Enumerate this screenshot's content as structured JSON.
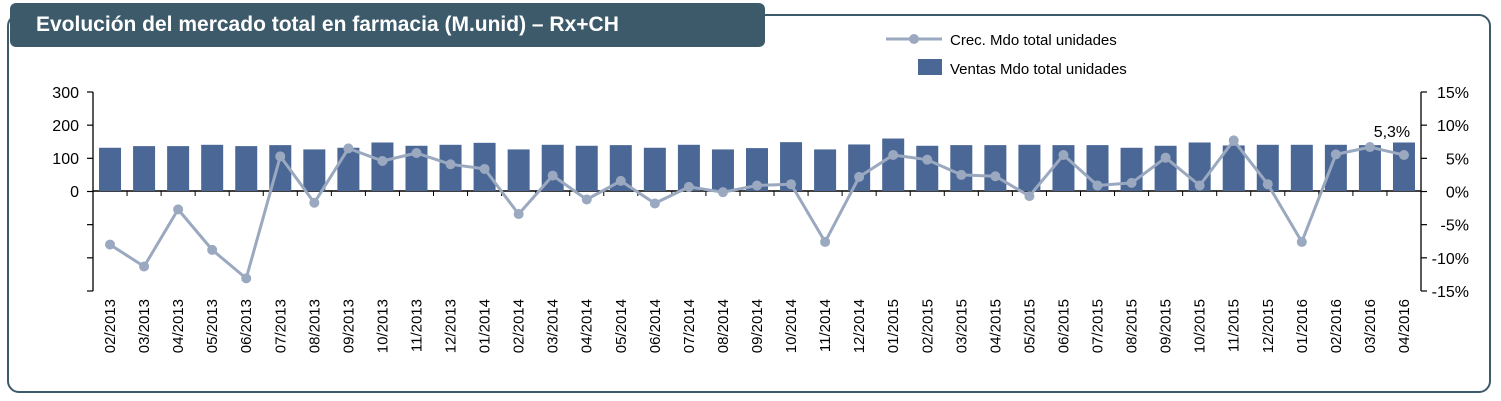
{
  "chart_data": {
    "type": "bar",
    "title": "Evolución del mercado total en farmacia (M.unid) – Rx+CH",
    "categories": [
      "02/2013",
      "03/2013",
      "04/2013",
      "05/2013",
      "06/2013",
      "07/2013",
      "08/2013",
      "09/2013",
      "10/2013",
      "11/2013",
      "12/2013",
      "01/2014",
      "02/2014",
      "03/2014",
      "04/2014",
      "05/2014",
      "06/2014",
      "07/2014",
      "08/2014",
      "09/2014",
      "10/2014",
      "11/2014",
      "12/2014",
      "01/2015",
      "02/2015",
      "03/2015",
      "04/2015",
      "05/2015",
      "06/2015",
      "07/2015",
      "08/2015",
      "09/2015",
      "10/2015",
      "11/2015",
      "12/2015",
      "01/2016",
      "02/2016",
      "03/2016",
      "04/2016"
    ],
    "series": [
      {
        "name": "Ventas Mdo total unidades",
        "type": "bar",
        "axis": "left",
        "color": "#4a6796",
        "values": [
          131,
          136,
          136,
          140,
          136,
          139,
          126,
          131,
          147,
          137,
          140,
          146,
          126,
          140,
          137,
          139,
          131,
          140,
          126,
          130,
          148,
          126,
          141,
          159,
          137,
          139,
          139,
          140,
          139,
          139,
          131,
          137,
          147,
          138,
          140,
          140,
          140,
          139,
          147
        ]
      },
      {
        "name": "Crec. Mdo total unidades",
        "type": "line",
        "axis": "right",
        "color": "#9aa9c0",
        "values": [
          -8,
          -11.3,
          -2.7,
          -8.8,
          -13.1,
          5.3,
          -1.7,
          6.5,
          4.6,
          5.8,
          4.1,
          3.4,
          -3.4,
          2.4,
          -1.2,
          1.6,
          -1.8,
          0.7,
          -0.1,
          0.9,
          1.1,
          -7.6,
          2.2,
          5.5,
          4.8,
          2.5,
          2.3,
          -0.7,
          5.5,
          0.9,
          1.3,
          5.1,
          0.9,
          7.7,
          1.1,
          -7.6,
          5.6,
          6.7,
          5.5
        ]
      }
    ],
    "y_left": {
      "ticks": [
        "300",
        "200",
        "100",
        "0"
      ],
      "range": [
        0,
        300
      ]
    },
    "y_right": {
      "ticks": [
        "15%",
        "10%",
        "5%",
        "0%",
        "-5%",
        "-10%",
        "-15%"
      ],
      "range": [
        -15,
        15
      ]
    },
    "annotations": [
      {
        "category": "03/2016",
        "text": "5,3%"
      }
    ],
    "legend": {
      "placement": "top-center"
    }
  }
}
